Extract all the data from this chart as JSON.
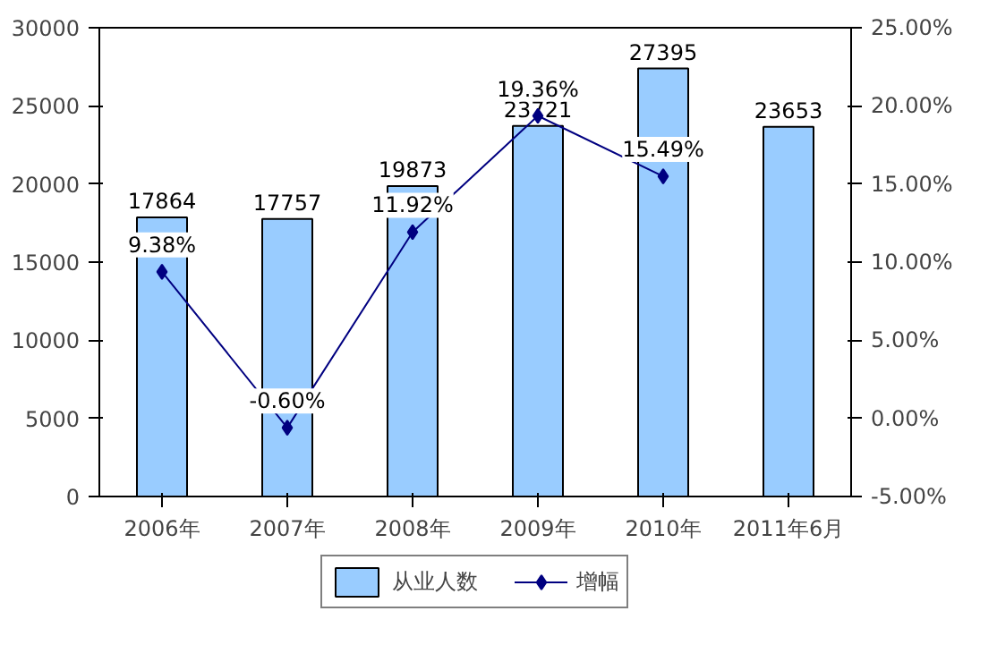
{
  "chart_data": {
    "type": "bar",
    "categories": [
      "2006年",
      "2007年",
      "2008年",
      "2009年",
      "2010年",
      "2011年6月"
    ],
    "series": [
      {
        "name": "从业人数",
        "color": "#99ccff",
        "values": [
          17864,
          17757,
          19873,
          23721,
          27395,
          23653
        ],
        "value_labels": [
          "17864",
          "17757",
          "19873",
          "23721",
          "27395",
          "23653"
        ]
      },
      {
        "name": "增幅",
        "type": "line",
        "axis": "y2",
        "color": "#000080",
        "marker": "diamond",
        "values": [
          9.38,
          -0.6,
          11.92,
          19.36,
          15.49,
          null
        ],
        "value_labels": [
          "9.38%",
          "-0.60%",
          "11.92%",
          "19.36%",
          "15.49%",
          null
        ]
      }
    ],
    "ylim": [
      0,
      30000
    ],
    "yticks": [
      0,
      5000,
      10000,
      15000,
      20000,
      25000,
      30000
    ],
    "y2lim": [
      -5,
      25
    ],
    "y2ticks": [
      {
        "value": -5,
        "label": "-5.00%"
      },
      {
        "value": 0,
        "label": "0.00%"
      },
      {
        "value": 5,
        "label": "5.00%"
      },
      {
        "value": 10,
        "label": "10.00%"
      },
      {
        "value": 15,
        "label": "15.00%"
      },
      {
        "value": 20,
        "label": "20.00%"
      },
      {
        "value": 25,
        "label": "25.00%"
      }
    ],
    "grid": false,
    "legend": "bottom"
  }
}
